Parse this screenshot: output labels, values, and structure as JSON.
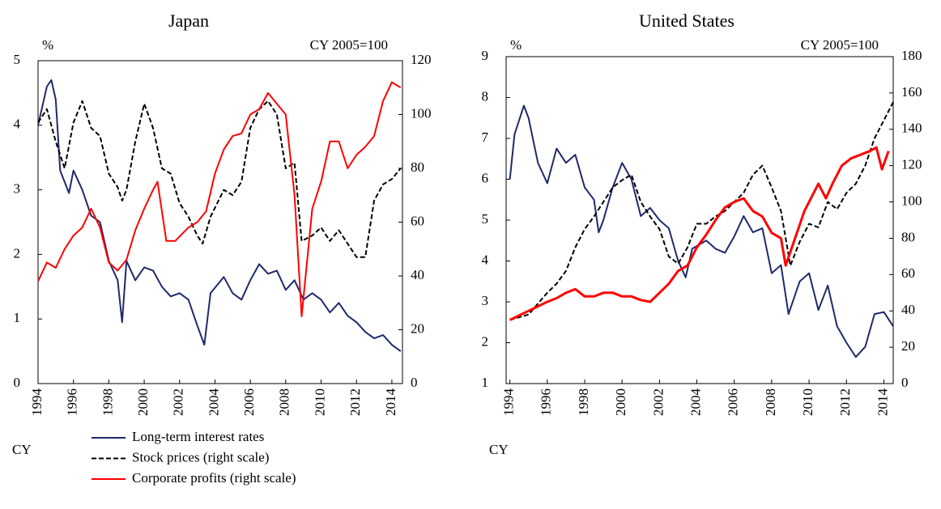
{
  "chart_data": [
    {
      "type": "line",
      "title": "Japan",
      "ylabel": "%",
      "y2label": "CY 2005=100",
      "xlabel": "CY",
      "xlim": [
        1994,
        2014.6
      ],
      "xticks": [
        1994,
        1996,
        1998,
        2000,
        2002,
        2004,
        2006,
        2008,
        2010,
        2012,
        2014
      ],
      "ylim": [
        0,
        5
      ],
      "yticks": [
        0,
        1,
        2,
        3,
        4,
        5
      ],
      "y2lim": [
        0,
        120
      ],
      "y2ticks": [
        0,
        20,
        40,
        60,
        80,
        100,
        120
      ],
      "series": [
        {
          "name": "Long-term interest rates",
          "color": "#1f2a6b",
          "dash": false,
          "axis": "y",
          "x": [
            1994.0,
            1994.5,
            1994.75,
            1995.0,
            1995.25,
            1995.75,
            1996.0,
            1996.5,
            1997.0,
            1997.5,
            1998.0,
            1998.5,
            1998.75,
            1999.0,
            1999.5,
            2000.0,
            2000.5,
            2001.0,
            2001.5,
            2002.0,
            2002.5,
            2003.0,
            2003.4,
            2003.75,
            2004.5,
            2005.0,
            2005.5,
            2006.0,
            2006.5,
            2007.0,
            2007.5,
            2008.0,
            2008.5,
            2009.0,
            2009.5,
            2010.0,
            2010.5,
            2011.0,
            2011.5,
            2012.0,
            2012.5,
            2013.0,
            2013.5,
            2014.0,
            2014.5
          ],
          "values": [
            4.0,
            4.6,
            4.7,
            4.4,
            3.3,
            2.95,
            3.3,
            3.0,
            2.6,
            2.5,
            1.9,
            1.6,
            0.95,
            1.9,
            1.6,
            1.8,
            1.75,
            1.5,
            1.35,
            1.4,
            1.3,
            0.9,
            0.6,
            1.4,
            1.65,
            1.4,
            1.3,
            1.6,
            1.85,
            1.7,
            1.75,
            1.45,
            1.6,
            1.3,
            1.4,
            1.3,
            1.1,
            1.25,
            1.05,
            0.95,
            0.8,
            0.7,
            0.75,
            0.6,
            0.5
          ]
        },
        {
          "name": "Stock prices (right scale)",
          "color": "#000000",
          "dash": true,
          "axis": "y2",
          "x": [
            1994.0,
            1994.5,
            1995.0,
            1995.5,
            1996.0,
            1996.5,
            1997.0,
            1997.5,
            1998.0,
            1998.5,
            1998.75,
            1999.0,
            1999.5,
            2000.0,
            2000.5,
            2001.0,
            2001.5,
            2002.0,
            2002.5,
            2003.0,
            2003.3,
            2003.75,
            2004.5,
            2005.0,
            2005.5,
            2006.0,
            2006.5,
            2007.0,
            2007.5,
            2008.0,
            2008.5,
            2008.9,
            2009.5,
            2010.0,
            2010.5,
            2011.0,
            2011.5,
            2012.0,
            2012.5,
            2013.0,
            2013.5,
            2014.0,
            2014.5
          ],
          "values": [
            97,
            102,
            90,
            80,
            97,
            105,
            95,
            92,
            78,
            73,
            68,
            72,
            90,
            104,
            95,
            80,
            78,
            67,
            62,
            55,
            52,
            62,
            72,
            70,
            75,
            95,
            102,
            105,
            100,
            80,
            82,
            53,
            55,
            58,
            53,
            57,
            52,
            47,
            47,
            68,
            74,
            76,
            80
          ]
        },
        {
          "name": "Corporate profits (right scale)",
          "color": "#ff0000",
          "dash": false,
          "axis": "y2",
          "x": [
            1994.0,
            1994.5,
            1995.0,
            1995.5,
            1996.0,
            1996.5,
            1997.0,
            1997.5,
            1998.0,
            1998.5,
            1999.0,
            1999.5,
            2000.0,
            2000.5,
            2000.75,
            2001.25,
            2001.75,
            2002.5,
            2003.0,
            2003.5,
            2004.0,
            2004.5,
            2005.0,
            2005.5,
            2006.0,
            2006.5,
            2007.0,
            2007.5,
            2008.0,
            2008.5,
            2008.9,
            2009.5,
            2010.0,
            2010.5,
            2011.0,
            2011.5,
            2012.0,
            2012.5,
            2013.0,
            2013.5,
            2014.0,
            2014.5
          ],
          "values": [
            38,
            45,
            43,
            50,
            55,
            58,
            65,
            58,
            45,
            42,
            46,
            57,
            65,
            72,
            75,
            53,
            53,
            58,
            60,
            64,
            78,
            87,
            92,
            93,
            100,
            102,
            108,
            104,
            100,
            70,
            25,
            65,
            75,
            90,
            90,
            80,
            85,
            88,
            92,
            105,
            112,
            110
          ]
        }
      ]
    },
    {
      "type": "line",
      "title": "United States",
      "ylabel": "%",
      "y2label": "CY 2005=100",
      "xlabel": "CY",
      "xlim": [
        1993.8,
        2014.5
      ],
      "xticks": [
        1994,
        1996,
        1998,
        2000,
        2002,
        2004,
        2006,
        2008,
        2010,
        2012,
        2014
      ],
      "ylim": [
        1,
        9
      ],
      "yticks": [
        1,
        2,
        3,
        4,
        5,
        6,
        7,
        8,
        9
      ],
      "y2lim": [
        0,
        180
      ],
      "y2ticks": [
        0,
        20,
        40,
        60,
        80,
        100,
        120,
        140,
        160,
        180
      ],
      "series": [
        {
          "color": "#1f2a6b",
          "dash": false,
          "axis": "y",
          "x": [
            1994.0,
            1994.25,
            1994.75,
            1995.0,
            1995.5,
            1996.0,
            1996.5,
            1997.0,
            1997.5,
            1998.0,
            1998.5,
            1998.75,
            1999.0,
            1999.5,
            2000.0,
            2000.5,
            2001.0,
            2001.5,
            2002.0,
            2002.5,
            2003.0,
            2003.4,
            2003.75,
            2004.5,
            2005.0,
            2005.5,
            2006.0,
            2006.5,
            2007.0,
            2007.5,
            2008.0,
            2008.5,
            2008.9,
            2009.5,
            2010.0,
            2010.5,
            2011.0,
            2011.5,
            2012.0,
            2012.5,
            2013.0,
            2013.5,
            2014.0,
            2014.5
          ],
          "values": [
            6.0,
            7.1,
            7.8,
            7.5,
            6.4,
            5.9,
            6.75,
            6.4,
            6.6,
            5.8,
            5.5,
            4.7,
            5.0,
            5.8,
            6.4,
            6.0,
            5.1,
            5.3,
            5.0,
            4.8,
            4.0,
            3.6,
            4.3,
            4.5,
            4.3,
            4.2,
            4.6,
            5.1,
            4.7,
            4.8,
            3.7,
            3.9,
            2.7,
            3.5,
            3.7,
            2.8,
            3.4,
            2.4,
            2.0,
            1.65,
            1.9,
            2.7,
            2.75,
            2.4
          ]
        },
        {
          "color": "#000000",
          "dash": true,
          "axis": "y2",
          "x": [
            1994.0,
            1995.0,
            1996.0,
            1996.5,
            1997.0,
            1997.5,
            1998.0,
            1998.5,
            1999.0,
            1999.5,
            2000.0,
            2000.5,
            2001.0,
            2001.5,
            2002.0,
            2002.5,
            2003.0,
            2003.5,
            2004.0,
            2004.5,
            2005.0,
            2005.5,
            2006.0,
            2006.5,
            2007.0,
            2007.5,
            2008.0,
            2008.5,
            2009.0,
            2009.5,
            2010.0,
            2010.5,
            2011.0,
            2011.5,
            2012.0,
            2012.5,
            2013.0,
            2013.5,
            2014.0,
            2014.5
          ],
          "values": [
            35,
            38,
            50,
            55,
            62,
            75,
            85,
            92,
            100,
            108,
            112,
            115,
            100,
            92,
            85,
            70,
            66,
            75,
            88,
            88,
            92,
            95,
            100,
            105,
            115,
            120,
            108,
            95,
            65,
            78,
            88,
            86,
            100,
            96,
            105,
            110,
            120,
            135,
            145,
            155
          ]
        },
        {
          "color": "#ff0000",
          "dash": false,
          "thick": true,
          "axis": "y2",
          "x": [
            1994.0,
            1995.0,
            1996.0,
            1996.5,
            1997.0,
            1997.5,
            1998.0,
            1998.5,
            1999.0,
            1999.5,
            2000.0,
            2000.5,
            2001.0,
            2001.5,
            2002.0,
            2002.5,
            2003.0,
            2003.5,
            2004.0,
            2004.5,
            2005.0,
            2005.5,
            2006.0,
            2006.5,
            2007.0,
            2007.5,
            2008.0,
            2008.5,
            2008.75,
            2009.25,
            2009.75,
            2010.5,
            2010.9,
            2011.25,
            2011.75,
            2012.25,
            2012.75,
            2013.25,
            2013.6,
            2013.9,
            2014.25
          ],
          "values": [
            35,
            40,
            45,
            47,
            50,
            52,
            48,
            48,
            50,
            50,
            48,
            48,
            46,
            45,
            50,
            55,
            62,
            65,
            75,
            82,
            90,
            97,
            100,
            102,
            95,
            92,
            83,
            80,
            65,
            80,
            95,
            110,
            102,
            110,
            120,
            124,
            126,
            128,
            130,
            118,
            128
          ]
        }
      ]
    }
  ]
}
